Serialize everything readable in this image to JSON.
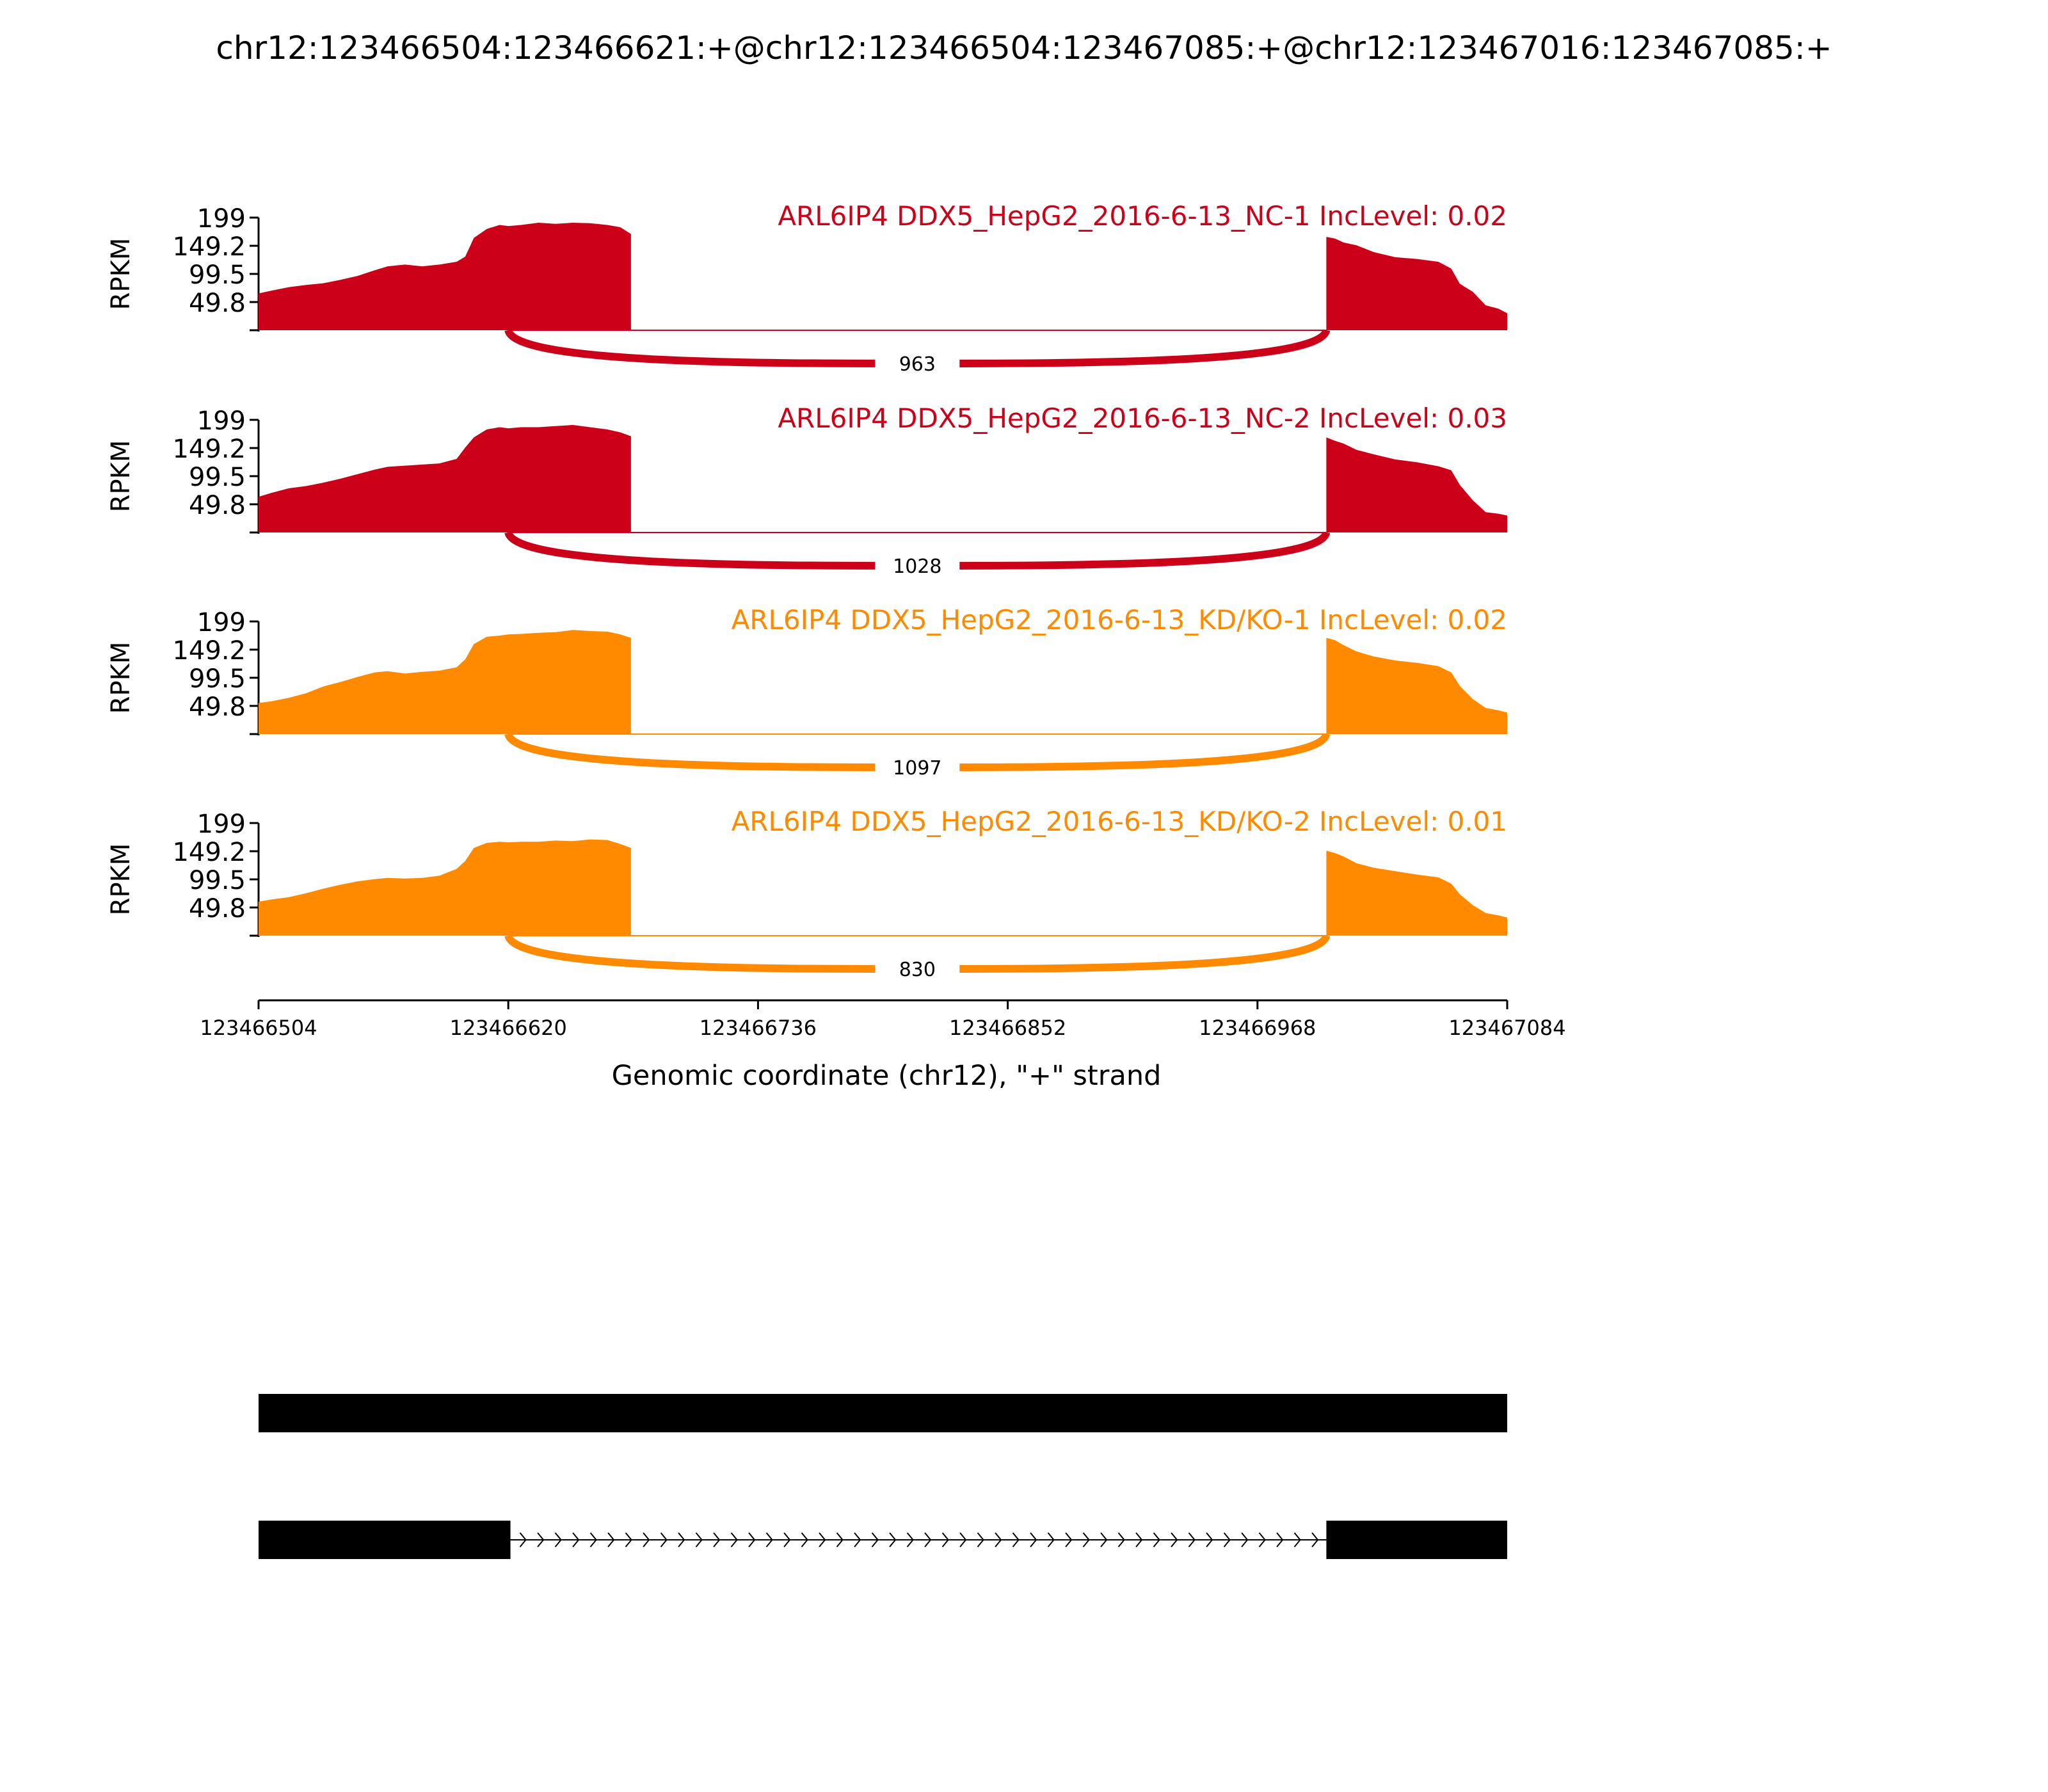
{
  "chart_data": {
    "type": "area",
    "title": "chr12:123466504:123466621:+@chr12:123466504:123467085:+@chr12:123467016:123467085:+",
    "ylabel": "RPKM",
    "xlabel": "Genomic coordinate (chr12), \"+\" strand",
    "xlim": [
      123466504,
      123467084
    ],
    "ylim": [
      0,
      199
    ],
    "x_ticks": [
      "123466504",
      "123466620",
      "123466736",
      "123466852",
      "123466968",
      "123467084"
    ],
    "y_ticks": [
      "199",
      "149.2",
      "99.5",
      "49.8"
    ],
    "colors": {
      "nc": "#cc0018",
      "kd": "#ff8a00"
    },
    "exons": {
      "upstream": [
        123466504,
        123466620
      ],
      "downstream": [
        123467000,
        123467084
      ]
    },
    "series": [
      {
        "name": "ARL6IP4 DDX5_HepG2_2016-6-13_NC-1 IncLevel: 0.02",
        "color_key": "nc",
        "junction_reads": "963",
        "coverage_left": [
          [
            123466504,
            65
          ],
          [
            123466510,
            70
          ],
          [
            123466518,
            76
          ],
          [
            123466526,
            80
          ],
          [
            123466534,
            83
          ],
          [
            123466542,
            89
          ],
          [
            123466550,
            96
          ],
          [
            123466558,
            106
          ],
          [
            123466564,
            113
          ],
          [
            123466572,
            116
          ],
          [
            123466580,
            113
          ],
          [
            123466588,
            116
          ],
          [
            123466596,
            121
          ],
          [
            123466600,
            130
          ],
          [
            123466604,
            163
          ],
          [
            123466610,
            179
          ],
          [
            123466616,
            186
          ],
          [
            123466620,
            184
          ],
          [
            123466626,
            186
          ],
          [
            123466634,
            190
          ],
          [
            123466642,
            188
          ],
          [
            123466650,
            190
          ],
          [
            123466658,
            189
          ],
          [
            123466666,
            186
          ],
          [
            123466672,
            182
          ],
          [
            123466677,
            170
          ]
        ],
        "coverage_right": [
          [
            123467000,
            165
          ],
          [
            123467004,
            162
          ],
          [
            123467008,
            155
          ],
          [
            123467014,
            150
          ],
          [
            123467022,
            138
          ],
          [
            123467032,
            129
          ],
          [
            123467042,
            126
          ],
          [
            123467052,
            121
          ],
          [
            123467058,
            109
          ],
          [
            123467062,
            82
          ],
          [
            123467068,
            68
          ],
          [
            123467074,
            44
          ],
          [
            123467080,
            38
          ],
          [
            123467084,
            30
          ]
        ]
      },
      {
        "name": "ARL6IP4 DDX5_HepG2_2016-6-13_NC-2 IncLevel: 0.03",
        "color_key": "nc",
        "junction_reads": "1028",
        "coverage_left": [
          [
            123466504,
            63
          ],
          [
            123466510,
            70
          ],
          [
            123466518,
            78
          ],
          [
            123466526,
            82
          ],
          [
            123466534,
            88
          ],
          [
            123466542,
            95
          ],
          [
            123466550,
            103
          ],
          [
            123466558,
            111
          ],
          [
            123466564,
            116
          ],
          [
            123466572,
            118
          ],
          [
            123466580,
            120
          ],
          [
            123466588,
            122
          ],
          [
            123466596,
            130
          ],
          [
            123466600,
            150
          ],
          [
            123466604,
            168
          ],
          [
            123466610,
            182
          ],
          [
            123466616,
            186
          ],
          [
            123466620,
            184
          ],
          [
            123466626,
            186
          ],
          [
            123466634,
            186
          ],
          [
            123466642,
            188
          ],
          [
            123466650,
            190
          ],
          [
            123466658,
            186
          ],
          [
            123466666,
            182
          ],
          [
            123466672,
            177
          ],
          [
            123466677,
            170
          ]
        ],
        "coverage_right": [
          [
            123467000,
            168
          ],
          [
            123467004,
            162
          ],
          [
            123467008,
            157
          ],
          [
            123467014,
            146
          ],
          [
            123467022,
            138
          ],
          [
            123467032,
            129
          ],
          [
            123467042,
            124
          ],
          [
            123467052,
            117
          ],
          [
            123467058,
            110
          ],
          [
            123467062,
            84
          ],
          [
            123467068,
            57
          ],
          [
            123467074,
            36
          ],
          [
            123467080,
            33
          ],
          [
            123467084,
            30
          ]
        ]
      },
      {
        "name": "ARL6IP4 DDX5_HepG2_2016-6-13_KD/KO-1 IncLevel: 0.02",
        "color_key": "kd",
        "junction_reads": "1097",
        "coverage_left": [
          [
            123466504,
            55
          ],
          [
            123466510,
            58
          ],
          [
            123466518,
            64
          ],
          [
            123466526,
            72
          ],
          [
            123466534,
            84
          ],
          [
            123466542,
            92
          ],
          [
            123466550,
            101
          ],
          [
            123466558,
            109
          ],
          [
            123466564,
            111
          ],
          [
            123466572,
            107
          ],
          [
            123466580,
            110
          ],
          [
            123466588,
            112
          ],
          [
            123466596,
            118
          ],
          [
            123466600,
            132
          ],
          [
            123466604,
            159
          ],
          [
            123466610,
            172
          ],
          [
            123466616,
            174
          ],
          [
            123466620,
            176
          ],
          [
            123466626,
            177
          ],
          [
            123466634,
            179
          ],
          [
            123466642,
            180
          ],
          [
            123466650,
            184
          ],
          [
            123466658,
            182
          ],
          [
            123466666,
            181
          ],
          [
            123466672,
            176
          ],
          [
            123466677,
            170
          ]
        ],
        "coverage_right": [
          [
            123467000,
            170
          ],
          [
            123467004,
            166
          ],
          [
            123467008,
            157
          ],
          [
            123467014,
            146
          ],
          [
            123467022,
            137
          ],
          [
            123467032,
            130
          ],
          [
            123467042,
            126
          ],
          [
            123467052,
            120
          ],
          [
            123467058,
            109
          ],
          [
            123467062,
            85
          ],
          [
            123467068,
            62
          ],
          [
            123467074,
            46
          ],
          [
            123467080,
            42
          ],
          [
            123467084,
            38
          ]
        ]
      },
      {
        "name": "ARL6IP4 DDX5_HepG2_2016-6-13_KD/KO-2 IncLevel: 0.01",
        "color_key": "kd",
        "junction_reads": "830",
        "coverage_left": [
          [
            123466504,
            60
          ],
          [
            123466510,
            64
          ],
          [
            123466518,
            68
          ],
          [
            123466526,
            75
          ],
          [
            123466534,
            83
          ],
          [
            123466542,
            90
          ],
          [
            123466550,
            96
          ],
          [
            123466558,
            100
          ],
          [
            123466564,
            102
          ],
          [
            123466572,
            101
          ],
          [
            123466580,
            102
          ],
          [
            123466588,
            106
          ],
          [
            123466596,
            118
          ],
          [
            123466600,
            132
          ],
          [
            123466604,
            155
          ],
          [
            123466610,
            164
          ],
          [
            123466616,
            166
          ],
          [
            123466620,
            165
          ],
          [
            123466626,
            166
          ],
          [
            123466634,
            166
          ],
          [
            123466642,
            168
          ],
          [
            123466650,
            167
          ],
          [
            123466658,
            170
          ],
          [
            123466666,
            169
          ],
          [
            123466672,
            162
          ],
          [
            123466677,
            155
          ]
        ],
        "coverage_right": [
          [
            123467000,
            150
          ],
          [
            123467004,
            146
          ],
          [
            123467008,
            140
          ],
          [
            123467014,
            128
          ],
          [
            123467022,
            120
          ],
          [
            123467032,
            114
          ],
          [
            123467042,
            108
          ],
          [
            123467052,
            103
          ],
          [
            123467058,
            92
          ],
          [
            123467062,
            73
          ],
          [
            123467068,
            54
          ],
          [
            123467074,
            40
          ],
          [
            123467080,
            36
          ],
          [
            123467084,
            32
          ]
        ]
      }
    ],
    "gene_models": [
      {
        "exons": [
          [
            123466504,
            123467084
          ]
        ],
        "intron_arrows": false
      },
      {
        "exons": [
          [
            123466504,
            123466621
          ],
          [
            123467000,
            123467084
          ]
        ],
        "intron_arrows": true
      }
    ]
  }
}
